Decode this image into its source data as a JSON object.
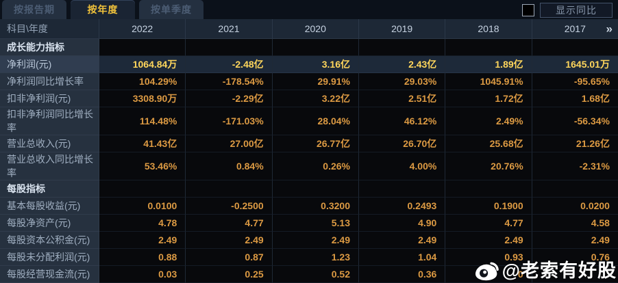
{
  "tabs": [
    {
      "label": "按报告期",
      "active": false
    },
    {
      "label": "按年度",
      "active": true
    },
    {
      "label": "按单季度",
      "active": false
    }
  ],
  "controls": {
    "show_yoy_label": "显示同比",
    "checkbox_checked": false
  },
  "table": {
    "corner_header": "科目\\年度",
    "year_headers": [
      "2022",
      "2021",
      "2020",
      "2019",
      "2018",
      "2017"
    ],
    "more_icon": "»",
    "rows": [
      {
        "type": "section",
        "label": "成长能力指标",
        "values": [
          "",
          "",
          "",
          "",
          "",
          ""
        ]
      },
      {
        "type": "data",
        "highlight": true,
        "label": "净利润(元)",
        "values": [
          "1064.84万",
          "-2.48亿",
          "3.16亿",
          "2.43亿",
          "1.89亿",
          "1645.01万"
        ]
      },
      {
        "type": "data",
        "label": "净利润同比增长率",
        "values": [
          "104.29%",
          "-178.54%",
          "29.91%",
          "29.03%",
          "1045.91%",
          "-95.65%"
        ]
      },
      {
        "type": "data",
        "label": "扣非净利润(元)",
        "values": [
          "3308.90万",
          "-2.29亿",
          "3.22亿",
          "2.51亿",
          "1.72亿",
          "1.68亿"
        ]
      },
      {
        "type": "data",
        "label": "扣非净利润同比增长率",
        "values": [
          "114.48%",
          "-171.03%",
          "28.04%",
          "46.12%",
          "2.49%",
          "-56.34%"
        ]
      },
      {
        "type": "data",
        "label": "营业总收入(元)",
        "values": [
          "41.43亿",
          "27.00亿",
          "26.77亿",
          "26.70亿",
          "25.68亿",
          "21.26亿"
        ]
      },
      {
        "type": "data",
        "label": "营业总收入同比增长率",
        "values": [
          "53.46%",
          "0.84%",
          "0.26%",
          "4.00%",
          "20.76%",
          "-2.31%"
        ]
      },
      {
        "type": "section",
        "label": "每股指标",
        "values": [
          "",
          "",
          "",
          "",
          "",
          ""
        ]
      },
      {
        "type": "data",
        "label": "基本每股收益(元)",
        "values": [
          "0.0100",
          "-0.2500",
          "0.3200",
          "0.2493",
          "0.1900",
          "0.0200"
        ]
      },
      {
        "type": "data",
        "label": "每股净资产(元)",
        "values": [
          "4.78",
          "4.77",
          "5.13",
          "4.90",
          "4.77",
          "4.58"
        ]
      },
      {
        "type": "data",
        "label": "每股资本公积金(元)",
        "values": [
          "2.49",
          "2.49",
          "2.49",
          "2.49",
          "2.49",
          "2.49"
        ]
      },
      {
        "type": "data",
        "label": "每股未分配利润(元)",
        "values": [
          "0.88",
          "0.87",
          "1.23",
          "1.04",
          "0.93",
          "0.76"
        ]
      },
      {
        "type": "data",
        "label": "每股经营现金流(元)",
        "values": [
          "0.03",
          "0.25",
          "0.52",
          "0.36",
          "0",
          ""
        ]
      }
    ]
  },
  "watermark": {
    "text": "@老索有好股"
  },
  "colors": {
    "accent_gold": "#f2c33b",
    "value_orange": "#dc9a43",
    "highlight_value": "#ffd65c",
    "label_bg": "#26313f",
    "header_bg": "#1d2836",
    "data_bg": "#08090c"
  }
}
